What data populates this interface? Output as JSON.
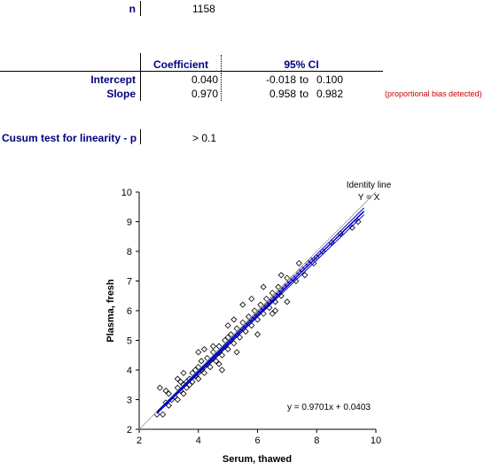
{
  "stats": {
    "n_label": "n",
    "n_value": "1158",
    "table": {
      "col_coef": "Coefficient",
      "col_ci": "95% CI",
      "rows": [
        {
          "label": "Intercept",
          "coef": "0.040",
          "ci_low": "-0.018",
          "ci_to": "to",
          "ci_high": "0.100"
        },
        {
          "label": "Slope",
          "coef": "0.970",
          "ci_low": "0.958",
          "ci_to": "to",
          "ci_high": "0.982"
        }
      ],
      "note": "(proportional bias detected)"
    },
    "cusum_label": "Cusum test for linearity - p",
    "cusum_value": "> 0.1"
  },
  "chart_data": {
    "type": "scatter",
    "xlabel": "Serum, thawed",
    "ylabel": "Plasma, fresh",
    "xlim": [
      2,
      10
    ],
    "ylim": [
      2,
      10
    ],
    "xticks": [
      2,
      4,
      6,
      8,
      10
    ],
    "yticks": [
      2,
      3,
      4,
      5,
      6,
      7,
      8,
      9,
      10
    ],
    "identity_label_1": "Identity line",
    "identity_label_2": "Y = X",
    "equation": "y = 0.9701x + 0.0403",
    "regression": {
      "slope": 0.9701,
      "intercept": 0.0403
    },
    "ci_slope_low": 0.958,
    "ci_slope_high": 0.982,
    "identity_color": "#aaaaaa",
    "regression_color": "#0000cc",
    "marker_color": "#000000",
    "n_points": 1158,
    "points": [
      [
        2.6,
        2.5
      ],
      [
        2.7,
        3.4
      ],
      [
        2.8,
        2.5
      ],
      [
        2.9,
        2.9
      ],
      [
        3.0,
        2.8
      ],
      [
        3.0,
        3.2
      ],
      [
        3.1,
        3.0
      ],
      [
        3.2,
        3.1
      ],
      [
        3.3,
        3.4
      ],
      [
        3.3,
        3.0
      ],
      [
        3.4,
        3.3
      ],
      [
        3.4,
        3.6
      ],
      [
        3.5,
        3.5
      ],
      [
        3.5,
        3.2
      ],
      [
        3.6,
        3.6
      ],
      [
        3.6,
        3.4
      ],
      [
        3.7,
        3.7
      ],
      [
        3.7,
        3.5
      ],
      [
        3.8,
        3.9
      ],
      [
        3.8,
        3.6
      ],
      [
        3.9,
        3.8
      ],
      [
        3.9,
        4.0
      ],
      [
        4.0,
        3.9
      ],
      [
        4.0,
        3.7
      ],
      [
        4.0,
        4.1
      ],
      [
        4.1,
        4.0
      ],
      [
        4.1,
        4.3
      ],
      [
        4.2,
        4.1
      ],
      [
        4.2,
        3.9
      ],
      [
        4.3,
        4.2
      ],
      [
        4.3,
        4.4
      ],
      [
        4.4,
        4.3
      ],
      [
        4.4,
        4.1
      ],
      [
        4.5,
        4.4
      ],
      [
        4.5,
        4.6
      ],
      [
        4.6,
        4.5
      ],
      [
        4.6,
        4.3
      ],
      [
        4.7,
        4.6
      ],
      [
        4.7,
        4.8
      ],
      [
        4.8,
        4.7
      ],
      [
        4.8,
        4.5
      ],
      [
        4.9,
        4.8
      ],
      [
        4.9,
        5.0
      ],
      [
        5.0,
        4.9
      ],
      [
        5.0,
        4.7
      ],
      [
        5.0,
        5.1
      ],
      [
        5.1,
        5.0
      ],
      [
        5.1,
        5.2
      ],
      [
        5.2,
        5.1
      ],
      [
        5.2,
        4.9
      ],
      [
        5.3,
        5.2
      ],
      [
        5.3,
        5.4
      ],
      [
        5.4,
        5.3
      ],
      [
        5.4,
        5.1
      ],
      [
        5.5,
        5.4
      ],
      [
        5.5,
        5.6
      ],
      [
        5.6,
        5.5
      ],
      [
        5.6,
        5.3
      ],
      [
        5.7,
        5.6
      ],
      [
        5.7,
        5.8
      ],
      [
        5.8,
        5.7
      ],
      [
        5.8,
        5.5
      ],
      [
        5.9,
        5.8
      ],
      [
        5.9,
        6.0
      ],
      [
        6.0,
        5.9
      ],
      [
        6.0,
        5.7
      ],
      [
        6.1,
        6.0
      ],
      [
        6.1,
        6.2
      ],
      [
        6.2,
        6.1
      ],
      [
        6.2,
        5.9
      ],
      [
        6.3,
        6.2
      ],
      [
        6.3,
        6.4
      ],
      [
        6.4,
        6.3
      ],
      [
        6.4,
        6.1
      ],
      [
        6.5,
        6.4
      ],
      [
        6.5,
        6.6
      ],
      [
        6.6,
        6.5
      ],
      [
        6.6,
        6.3
      ],
      [
        6.7,
        6.6
      ],
      [
        6.7,
        6.8
      ],
      [
        6.8,
        6.7
      ],
      [
        6.8,
        6.5
      ],
      [
        6.9,
        6.8
      ],
      [
        7.0,
        6.9
      ],
      [
        7.0,
        7.1
      ],
      [
        7.1,
        7.0
      ],
      [
        7.2,
        7.1
      ],
      [
        7.3,
        7.0
      ],
      [
        7.4,
        7.3
      ],
      [
        7.5,
        7.4
      ],
      [
        7.6,
        7.2
      ],
      [
        7.7,
        7.6
      ],
      [
        7.8,
        7.7
      ],
      [
        7.9,
        7.6
      ],
      [
        8.0,
        7.8
      ],
      [
        8.2,
        8.0
      ],
      [
        8.5,
        8.3
      ],
      [
        8.8,
        8.6
      ],
      [
        9.2,
        8.8
      ],
      [
        9.4,
        9.0
      ],
      [
        4.5,
        4.8
      ],
      [
        5.5,
        6.2
      ],
      [
        4.0,
        4.6
      ],
      [
        6.0,
        5.2
      ],
      [
        3.5,
        3.9
      ],
      [
        5.2,
        5.7
      ],
      [
        6.8,
        7.2
      ],
      [
        7.0,
        6.3
      ],
      [
        5.0,
        5.5
      ],
      [
        4.7,
        4.2
      ],
      [
        3.3,
        3.7
      ],
      [
        2.9,
        3.3
      ],
      [
        5.8,
        6.4
      ],
      [
        6.2,
        6.8
      ],
      [
        4.2,
        4.7
      ],
      [
        6.5,
        5.9
      ],
      [
        4.8,
        4.0
      ],
      [
        5.3,
        4.6
      ],
      [
        7.4,
        7.6
      ],
      [
        6.6,
        6.0
      ]
    ]
  }
}
